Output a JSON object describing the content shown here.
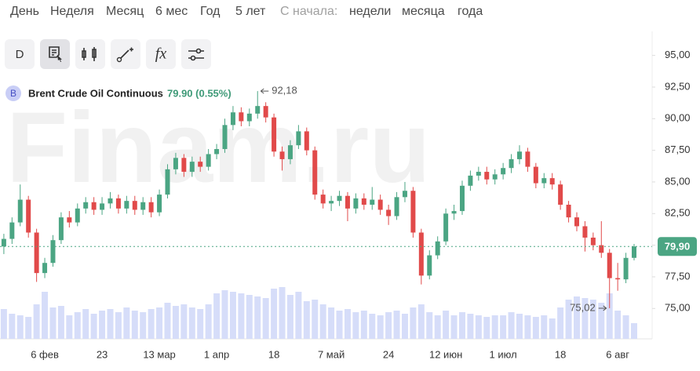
{
  "toolbar": {
    "periods": [
      "День",
      "Неделя",
      "Месяц",
      "6 мес",
      "Год",
      "5 лет"
    ],
    "since_label": "С начала:",
    "since_options": [
      "недели",
      "месяца",
      "года"
    ],
    "tools": [
      "D",
      "fx"
    ]
  },
  "chart_data": {
    "type": "candlestick",
    "watermark": "Finam.ru",
    "legend": {
      "badge": "B",
      "name": "Brent Crude Oil Continuous",
      "quote": "79.90 (0.55%)"
    },
    "categories": [
      null,
      null,
      null,
      null,
      null,
      "6 фев",
      null,
      null,
      null,
      null,
      null,
      null,
      "23",
      null,
      null,
      null,
      null,
      null,
      null,
      "13 мар",
      null,
      null,
      null,
      null,
      null,
      null,
      "1 апр",
      null,
      null,
      null,
      null,
      null,
      null,
      "18",
      null,
      null,
      null,
      null,
      null,
      null,
      "7 май",
      null,
      null,
      null,
      null,
      null,
      null,
      "24",
      null,
      null,
      null,
      null,
      null,
      null,
      "12 июн",
      null,
      null,
      null,
      null,
      null,
      null,
      "1 июл",
      null,
      null,
      null,
      null,
      null,
      null,
      "18",
      null,
      null,
      null,
      null,
      null,
      null,
      "6 авг",
      null,
      null
    ],
    "open": [
      79.9,
      80.5,
      81.8,
      83.6,
      81.0,
      77.8,
      78.6,
      80.4,
      82.2,
      81.8,
      82.9,
      83.4,
      82.8,
      83.3,
      83.7,
      82.9,
      83.5,
      82.8,
      83.4,
      82.6,
      84.0,
      86.0,
      86.9,
      85.8,
      86.6,
      86.2,
      87.2,
      87.6,
      89.5,
      90.5,
      89.8,
      90.4,
      91.0,
      90.1,
      87.4,
      86.8,
      87.9,
      89.0,
      87.5,
      84.0,
      83.3,
      83.5,
      83.9,
      82.9,
      83.7,
      83.2,
      83.6,
      82.8,
      82.3,
      83.8,
      84.3,
      81.0,
      77.6,
      79.2,
      80.3,
      82.5,
      82.7,
      84.7,
      85.5,
      85.8,
      85.2,
      85.6,
      86.1,
      86.8,
      87.4,
      86.2,
      84.9,
      85.3,
      84.8,
      83.2,
      82.2,
      81.5,
      80.6,
      80.0,
      79.4,
      77.4,
      77.3,
      79.0
    ],
    "high": [
      80.9,
      82.2,
      84.8,
      83.9,
      81.3,
      79.0,
      80.8,
      82.6,
      82.7,
      83.3,
      83.8,
      83.8,
      83.8,
      84.2,
      84.0,
      83.9,
      83.9,
      83.8,
      83.8,
      84.4,
      86.4,
      87.3,
      87.2,
      87.0,
      87.0,
      87.6,
      88.0,
      90.0,
      91.0,
      90.9,
      90.8,
      92.18,
      91.3,
      90.4,
      87.8,
      88.3,
      89.5,
      89.3,
      87.8,
      84.4,
      83.9,
      84.3,
      84.2,
      84.1,
      84.1,
      84.6,
      84.0,
      83.2,
      84.2,
      85.0,
      84.6,
      81.3,
      79.6,
      80.7,
      82.9,
      83.2,
      85.1,
      85.9,
      86.2,
      86.2,
      86.0,
      86.5,
      87.2,
      87.9,
      87.7,
      86.5,
      85.7,
      85.7,
      85.1,
      83.5,
      82.6,
      81.9,
      81.0,
      81.9,
      79.7,
      78.6,
      79.4,
      80.1
    ],
    "low": [
      79.3,
      80.1,
      81.5,
      80.6,
      77.1,
      77.4,
      78.3,
      80.1,
      81.4,
      81.5,
      82.5,
      82.4,
      82.4,
      82.9,
      82.5,
      82.5,
      82.4,
      82.4,
      82.2,
      82.3,
      83.7,
      85.6,
      85.4,
      85.4,
      85.8,
      85.9,
      86.8,
      87.3,
      89.1,
      89.4,
      89.4,
      90.0,
      89.7,
      87.0,
      85.9,
      86.4,
      87.6,
      87.1,
      83.6,
      82.9,
      82.7,
      83.1,
      81.9,
      82.5,
      82.8,
      82.8,
      82.4,
      81.6,
      82.0,
      83.4,
      80.6,
      76.9,
      77.3,
      78.9,
      80.0,
      82.0,
      82.4,
      84.3,
      85.1,
      84.8,
      84.8,
      85.2,
      85.7,
      86.4,
      85.8,
      84.5,
      84.5,
      84.4,
      82.8,
      81.8,
      81.1,
      79.5,
      79.6,
      79.0,
      75.02,
      76.4,
      77.0,
      78.8
    ],
    "close": [
      80.5,
      81.8,
      83.6,
      81.0,
      77.8,
      78.6,
      80.4,
      82.2,
      81.8,
      82.9,
      83.4,
      82.8,
      83.3,
      83.7,
      82.9,
      83.5,
      82.8,
      83.4,
      82.6,
      84.0,
      86.0,
      86.9,
      85.8,
      86.6,
      86.2,
      87.2,
      87.6,
      89.5,
      90.5,
      89.8,
      90.4,
      91.0,
      90.1,
      87.4,
      86.8,
      87.9,
      89.0,
      87.5,
      84.0,
      83.3,
      83.5,
      83.9,
      82.9,
      83.7,
      83.2,
      83.6,
      82.8,
      82.3,
      83.8,
      84.3,
      81.0,
      77.6,
      79.2,
      80.3,
      82.5,
      82.7,
      84.7,
      85.5,
      85.8,
      85.2,
      85.6,
      86.1,
      86.8,
      87.4,
      86.2,
      84.9,
      85.3,
      84.8,
      83.2,
      82.2,
      81.5,
      80.6,
      80.0,
      79.4,
      77.4,
      77.3,
      79.0,
      79.9
    ],
    "volume": [
      38,
      32,
      30,
      28,
      44,
      60,
      40,
      42,
      30,
      34,
      38,
      32,
      36,
      38,
      34,
      40,
      36,
      34,
      38,
      40,
      46,
      42,
      44,
      40,
      38,
      44,
      58,
      62,
      60,
      58,
      56,
      54,
      52,
      64,
      66,
      56,
      60,
      48,
      50,
      44,
      40,
      36,
      38,
      34,
      36,
      32,
      30,
      34,
      36,
      32,
      40,
      44,
      34,
      30,
      36,
      30,
      34,
      32,
      30,
      28,
      30,
      30,
      34,
      32,
      30,
      28,
      30,
      26,
      40,
      50,
      54,
      52,
      50,
      46,
      58,
      36,
      30,
      20
    ],
    "up_color": "#4ba583",
    "down_color": "#e14a4a",
    "volume_color": "#d6ddf9",
    "ylim": [
      72.6,
      96.9
    ],
    "yticks": [
      {
        "value": 95,
        "label": "95,00"
      },
      {
        "value": 92.5,
        "label": "92,50"
      },
      {
        "value": 90,
        "label": "90,00"
      },
      {
        "value": 87.5,
        "label": "87,50"
      },
      {
        "value": 85,
        "label": "85,00"
      },
      {
        "value": 82.5,
        "label": "82,50"
      },
      {
        "value": 80,
        "label": "80,00"
      },
      {
        "value": 77.5,
        "label": "77,50"
      },
      {
        "value": 75,
        "label": "75,00"
      }
    ],
    "last_price": {
      "value": 79.9,
      "label": "79,90"
    },
    "annotations": [
      {
        "value": 92.18,
        "label": "92,18"
      },
      {
        "value": 75.02,
        "label": "75,02"
      }
    ]
  }
}
